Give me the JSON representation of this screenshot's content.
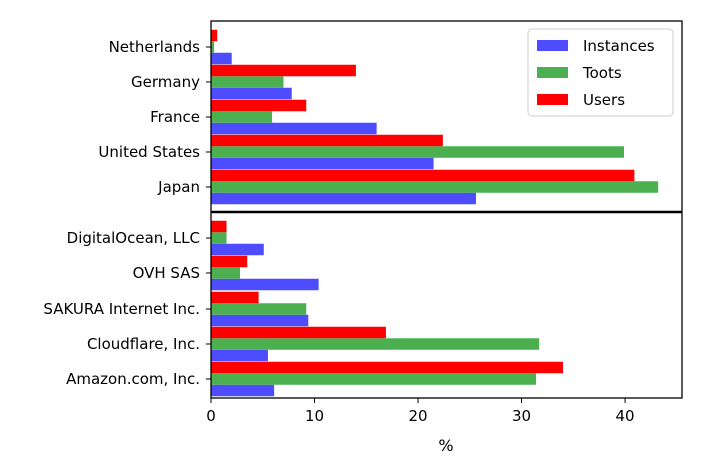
{
  "chart_data": {
    "type": "bar",
    "orientation": "horizontal",
    "xlabel": "%",
    "xlim": [
      0,
      45.5
    ],
    "xticks": [
      0,
      10,
      20,
      30,
      40
    ],
    "legend": {
      "placement": "top-right",
      "entries": [
        "Instances",
        "Toots",
        "Users"
      ]
    },
    "series_colors": {
      "Instances": "#4d4dff",
      "Toots": "#4caf50",
      "Users": "#ff0000"
    },
    "panels": [
      {
        "categories": [
          "Netherlands",
          "Germany",
          "France",
          "United States",
          "Japan"
        ],
        "series": [
          {
            "name": "Instances",
            "values": [
              2.0,
              7.8,
              16.0,
              21.5,
              25.6
            ]
          },
          {
            "name": "Toots",
            "values": [
              0.3,
              7.0,
              5.9,
              39.9,
              43.2
            ]
          },
          {
            "name": "Users",
            "values": [
              0.6,
              14.0,
              9.2,
              22.4,
              40.9
            ]
          }
        ]
      },
      {
        "categories": [
          "DigitalOcean, LLC",
          "OVH SAS",
          "SAKURA Internet Inc.",
          "Cloudflare, Inc.",
          "Amazon.com, Inc."
        ],
        "series": [
          {
            "name": "Instances",
            "values": [
              5.1,
              10.4,
              9.4,
              5.5,
              6.1
            ]
          },
          {
            "name": "Toots",
            "values": [
              1.5,
              2.8,
              9.2,
              31.7,
              31.4
            ]
          },
          {
            "name": "Users",
            "values": [
              1.5,
              3.5,
              4.6,
              16.9,
              34.0
            ]
          }
        ]
      }
    ]
  }
}
